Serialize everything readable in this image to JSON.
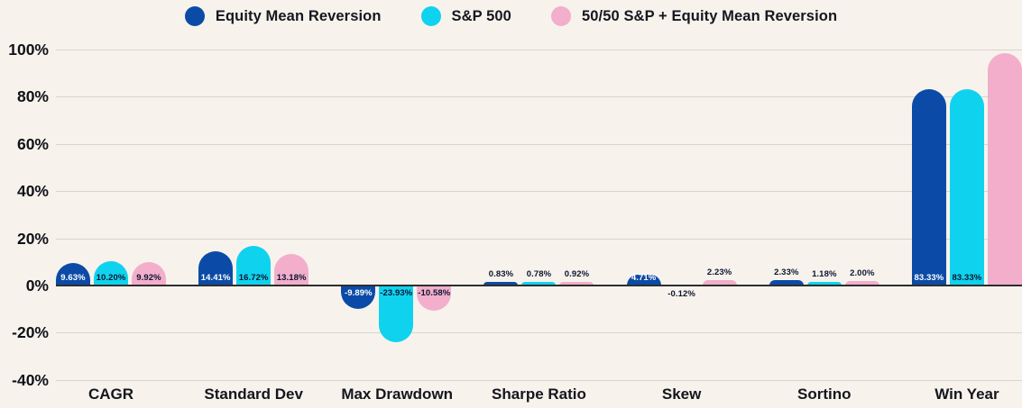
{
  "legend": {
    "items": [
      {
        "label": "Equity Mean Reversion",
        "color": "#0b4ba7"
      },
      {
        "label": "S&P 500",
        "color": "#0fd3ee"
      },
      {
        "label": "50/50 S&P + Equity Mean Reversion",
        "color": "#f2aecb"
      }
    ]
  },
  "chart_data": {
    "type": "bar",
    "title": "",
    "xlabel": "",
    "ylabel": "",
    "categories": [
      "CAGR",
      "Standard Dev",
      "Max Drawdown",
      "Sharpe Ratio",
      "Skew",
      "Sortino",
      "Win Year"
    ],
    "series": [
      {
        "name": "Equity Mean Reversion",
        "color": "#0b4ba7",
        "values": [
          9.63,
          14.41,
          -9.89,
          0.83,
          4.71,
          2.33,
          83.33
        ],
        "labels": [
          "9.63%",
          "14.41%",
          "-9.89%",
          "0.83%",
          "4.71%",
          "2.33%",
          "83.33%"
        ],
        "label_positions": [
          "inside-bottom",
          "inside-bottom",
          "inside-top",
          "above",
          "inside-bottom",
          "above",
          "inside-bottom"
        ],
        "label_colors": [
          "light",
          "light",
          "light",
          "dark",
          "light",
          "dark",
          "light"
        ]
      },
      {
        "name": "S&P 500",
        "color": "#0fd3ee",
        "values": [
          10.2,
          16.72,
          -23.93,
          0.78,
          -0.12,
          1.18,
          83.33
        ],
        "labels": [
          "10.20%",
          "16.72%",
          "-23.93%",
          "0.78%",
          "-0.12%",
          "1.18%",
          "83.33%"
        ],
        "label_positions": [
          "inside-bottom",
          "inside-bottom",
          "inside-top",
          "above",
          "below",
          "above",
          "inside-bottom"
        ],
        "label_colors": [
          "dark",
          "dark",
          "dark",
          "dark",
          "dark",
          "dark",
          "dark"
        ]
      },
      {
        "name": "50/50 S&P + Equity Mean Reversion",
        "color": "#f2aecb",
        "values": [
          9.92,
          13.18,
          -10.58,
          0.92,
          2.23,
          2.0,
          98.5
        ],
        "labels": [
          "9.92%",
          "13.18%",
          "-10.58%",
          "0.92%",
          "2.23%",
          "2.00%",
          null
        ],
        "label_positions": [
          "inside-bottom",
          "inside-bottom",
          "inside-top",
          "above",
          "above",
          "above",
          "none"
        ],
        "label_colors": [
          "dark",
          "dark",
          "dark",
          "dark",
          "dark",
          "dark",
          "dark"
        ]
      }
    ],
    "yticks": [
      100,
      80,
      60,
      40,
      20,
      0,
      -20,
      -40
    ],
    "ytick_labels": [
      "100%",
      "80%",
      "60%",
      "40%",
      "20%",
      "0%",
      "-20%",
      "-40%"
    ],
    "ylim": [
      -40,
      100
    ],
    "grid": true,
    "legend_position": "top"
  },
  "colors": {
    "background": "#f7f3ec",
    "gridline": "#d9d5cd",
    "axis_line": "#2e2e2e",
    "text": "#15151d",
    "label_light": "#ffffff",
    "label_dark": "#0c1530"
  }
}
